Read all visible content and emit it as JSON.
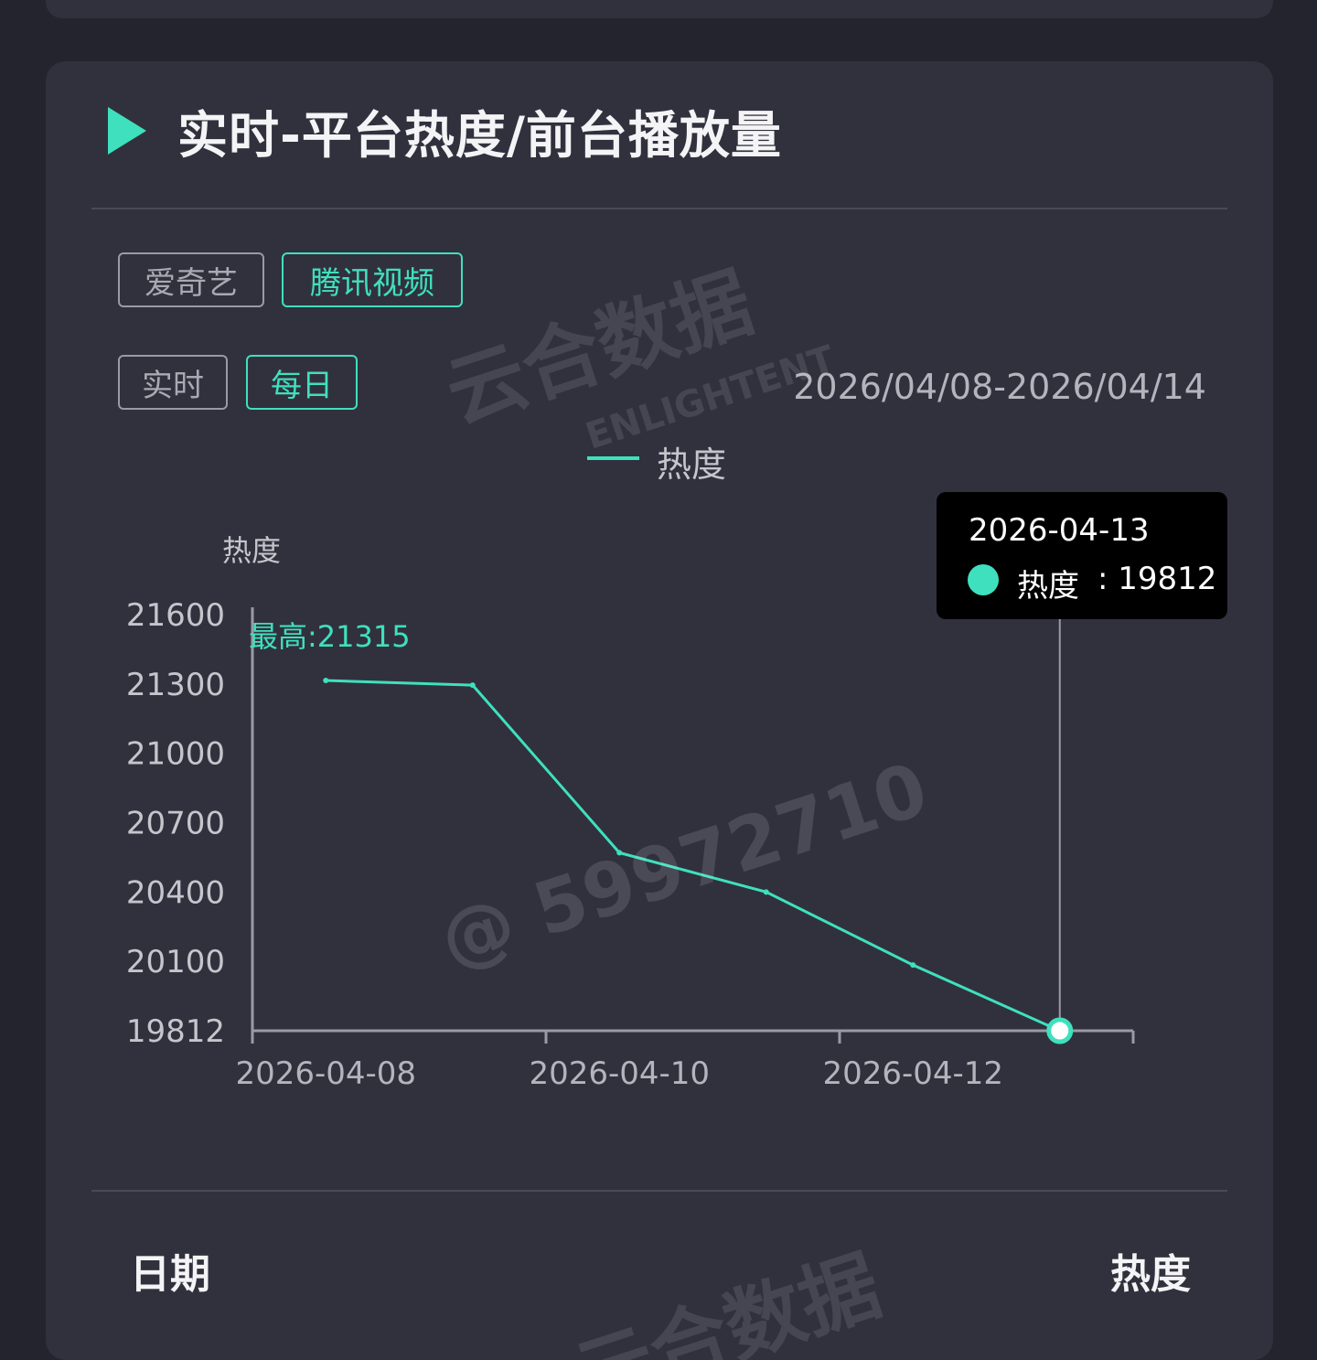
{
  "panel": {
    "title": "实时-平台热度/前台播放量",
    "platform_tabs": [
      {
        "label": "爱奇艺",
        "active": false
      },
      {
        "label": "腾讯视频",
        "active": true
      }
    ],
    "period_tabs": [
      {
        "label": "实时",
        "active": false
      },
      {
        "label": "每日",
        "active": true
      }
    ],
    "date_range": "2026/04/08-2026/04/14",
    "accent_color": "#3fe0bd"
  },
  "legend": {
    "label": "热度"
  },
  "tooltip": {
    "date": "2026-04-13",
    "series": "热度",
    "value": "19812"
  },
  "table": {
    "headers": [
      "日期",
      "热度"
    ]
  },
  "watermark": {
    "brand": "云合数据",
    "brand_en": "ENLIGHTENT",
    "user": "@ 59972710"
  },
  "icons": {
    "title": "play-triangle-icon"
  },
  "chart_data": {
    "type": "line",
    "ylabel": "热度",
    "y_ticks": [
      21600,
      21300,
      21000,
      20700,
      20400,
      20100,
      19812
    ],
    "ylim": [
      19812,
      21600
    ],
    "x_ticks": [
      "2026-04-08",
      "2026-04-10",
      "2026-04-12"
    ],
    "x": [
      "2026-04-08",
      "2026-04-09",
      "2026-04-10",
      "2026-04-11",
      "2026-04-12",
      "2026-04-13"
    ],
    "series": [
      {
        "name": "热度",
        "values": [
          21315,
          21295,
          20570,
          20400,
          20085,
          19812
        ]
      }
    ],
    "annotation": "最高:21315",
    "highlighted_point": "2026-04-13",
    "grid": false
  }
}
